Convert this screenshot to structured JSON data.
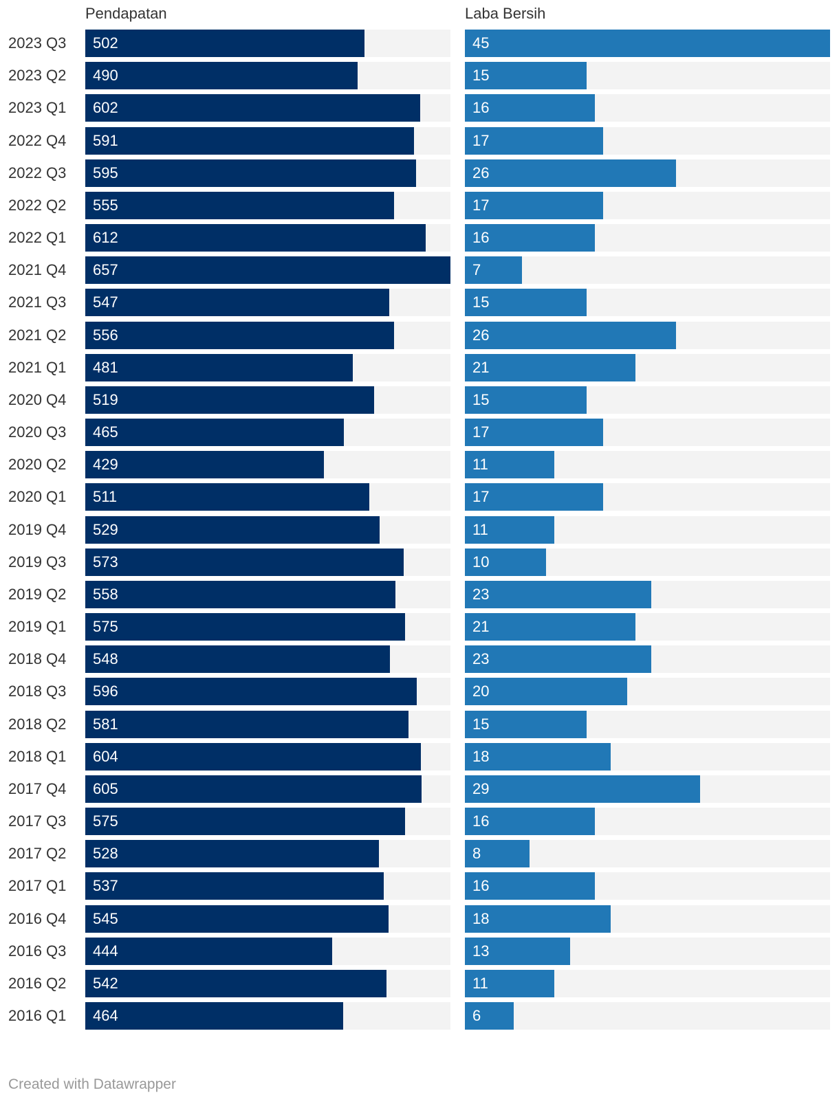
{
  "chart_data": {
    "type": "bar",
    "orientation": "horizontal",
    "categories": [
      "2023 Q3",
      "2023 Q2",
      "2023 Q1",
      "2022 Q4",
      "2022 Q3",
      "2022 Q2",
      "2022 Q1",
      "2021 Q4",
      "2021 Q3",
      "2021 Q2",
      "2021 Q1",
      "2020 Q4",
      "2020 Q3",
      "2020 Q2",
      "2020 Q1",
      "2019 Q4",
      "2019 Q3",
      "2019 Q2",
      "2019 Q1",
      "2018 Q4",
      "2018 Q3",
      "2018 Q2",
      "2018 Q1",
      "2017 Q4",
      "2017 Q3",
      "2017 Q2",
      "2017 Q1",
      "2016 Q4",
      "2016 Q3",
      "2016 Q2",
      "2016 Q1"
    ],
    "series": [
      {
        "name": "Pendapatan",
        "color": "#002f66",
        "values": [
          502,
          490,
          602,
          591,
          595,
          555,
          612,
          657,
          547,
          556,
          481,
          519,
          465,
          429,
          511,
          529,
          573,
          558,
          575,
          548,
          596,
          581,
          604,
          605,
          575,
          528,
          537,
          545,
          444,
          542,
          464
        ],
        "xlim": [
          0,
          657
        ]
      },
      {
        "name": "Laba Bersih",
        "color": "#2178b6",
        "values": [
          45,
          15,
          16,
          17,
          26,
          17,
          16,
          7,
          15,
          26,
          21,
          15,
          17,
          11,
          17,
          11,
          10,
          23,
          21,
          23,
          20,
          15,
          18,
          29,
          16,
          8,
          16,
          18,
          13,
          11,
          6
        ],
        "xlim": [
          0,
          45
        ]
      }
    ],
    "track_color": "#f3f3f3",
    "value_labels": "inside-left",
    "title": "",
    "xlabel": "",
    "ylabel": ""
  },
  "footer": {
    "credit": "Created with Datawrapper"
  }
}
